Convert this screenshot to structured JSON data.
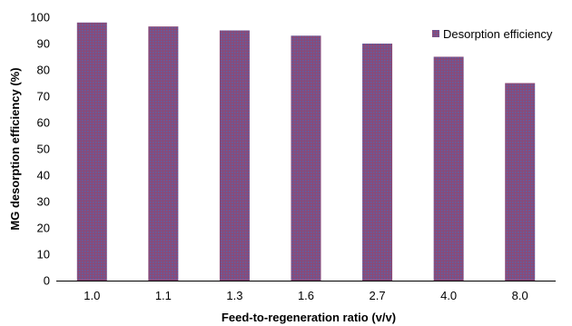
{
  "chart_data": {
    "type": "bar",
    "categories": [
      "1.0",
      "1.1",
      "1.3",
      "1.6",
      "2.7",
      "4.0",
      "8.0"
    ],
    "series": [
      {
        "name": "Desorption efficiency",
        "values": [
          98,
          96.5,
          95,
          93,
          90,
          85,
          75
        ]
      }
    ],
    "xlabel": "Feed-to-regeneration ratio (v/v)",
    "ylabel": "MG desorption efficiency (%)",
    "ylim": [
      0,
      100
    ],
    "yticks": [
      "0",
      "10",
      "20",
      "30",
      "40",
      "50",
      "60",
      "70",
      "80",
      "90",
      "100"
    ],
    "grid": false,
    "legend_position": "top-right",
    "bar_color": "#8a4a78",
    "bar_pattern_color": "#5a62a8"
  }
}
